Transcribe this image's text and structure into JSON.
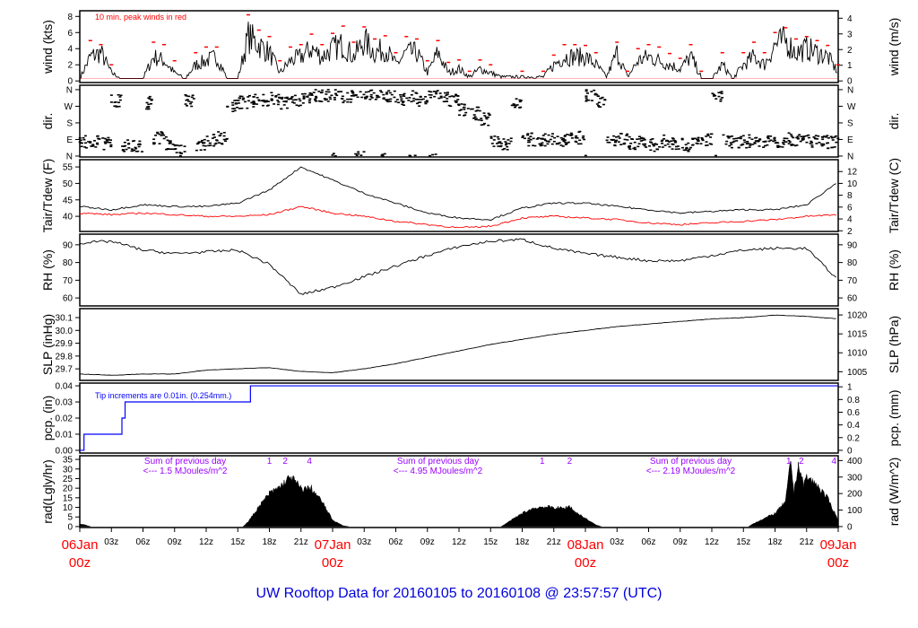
{
  "footer": "UW Rooftop Data for 20160105  to  20160108 @ 23:57:57  (UTC)",
  "colors": {
    "main": "#000000",
    "peak": "#ff0000",
    "dew": "#ff0000",
    "pcp": "#0000ff",
    "rad_note": "#9900ff",
    "date": "#ff0000",
    "footer": "#0000dd"
  },
  "chart_data": {
    "type": "line",
    "x_unit": "hours since 06Jan 00z",
    "x_range": [
      0,
      72
    ],
    "x_ticks": {
      "days": [
        {
          "h": 0,
          "label": "06Jan",
          "sub": "00z"
        },
        {
          "h": 24,
          "label": "07Jan",
          "sub": "00z"
        },
        {
          "h": 48,
          "label": "08Jan",
          "sub": "00z"
        },
        {
          "h": 72,
          "label": "09Jan",
          "sub": "00z"
        }
      ],
      "hours": [
        "03z",
        "06z",
        "09z",
        "12z",
        "15z",
        "18z",
        "21z"
      ]
    },
    "panels": {
      "wind": {
        "left_label": "wind (kts)",
        "right_label": "wind (m/s)",
        "ylim": [
          -0.2,
          8.7
        ],
        "left_ticks": [
          "0",
          "2",
          "4",
          "6",
          "8"
        ],
        "right_ticks": [
          "0",
          "1",
          "2",
          "3",
          "4"
        ],
        "note": "10 min. peak winds in red",
        "mean": [
          0.3,
          3,
          3.5,
          1,
          0.3,
          0.3,
          0.3,
          3,
          2.5,
          1,
          0.3,
          2,
          2.5,
          3,
          0.3,
          0.3,
          5.5,
          4.5,
          3.5,
          1,
          2.5,
          3,
          4,
          3,
          4,
          4.5,
          3,
          5,
          3.5,
          4,
          2,
          3.5,
          3.5,
          1,
          3.5,
          1,
          1.5,
          0.5,
          1.5,
          1,
          0.5,
          0.5,
          0.5,
          0.5,
          0.5,
          2,
          3,
          3,
          3,
          2,
          0.5,
          3.5,
          0.5,
          2.5,
          3,
          2.5,
          2,
          1.5,
          3,
          0.5,
          0.3,
          2,
          0.3,
          2,
          3,
          2,
          4.5,
          5,
          3.5,
          4,
          3.5,
          3,
          1
        ],
        "peak": [
          0.8,
          5,
          4.5,
          2,
          0.5,
          0.5,
          0.5,
          4.8,
          4.5,
          2.5,
          0.5,
          3.5,
          4.2,
          4.2,
          0.5,
          0.5,
          8.2,
          6.3,
          5.5,
          2.5,
          4.2,
          4.5,
          5.8,
          4.5,
          5.9,
          6.8,
          4.8,
          6.7,
          5.2,
          5.6,
          3.5,
          5.5,
          5.2,
          2.5,
          5,
          2.3,
          2.6,
          1.2,
          2.6,
          2,
          1,
          1,
          1.2,
          1,
          1.2,
          3.2,
          4.5,
          4.5,
          4.4,
          3.5,
          1,
          4.8,
          1.2,
          4,
          4.5,
          4.2,
          3.4,
          2.8,
          4.5,
          1.2,
          0.8,
          3.5,
          0.8,
          3.5,
          4.8,
          3.5,
          6,
          6.6,
          5.2,
          5.5,
          5,
          4.4,
          2
        ]
      },
      "dir": {
        "left_label": "dir.",
        "right_label": "dir.",
        "ylim": [
          -5,
          384
        ],
        "ticks": [
          "N",
          "E",
          "S",
          "W",
          "N"
        ],
        "values_deg": [
          75,
          80,
          70,
          300,
          60,
          50,
          290,
          100,
          70,
          30,
          300,
          60,
          90,
          100,
          270,
          290,
          300,
          300,
          310,
          290,
          300,
          310,
          330,
          330,
          340,
          320,
          350,
          340,
          340,
          320,
          310,
          330,
          300,
          340,
          320,
          300,
          250,
          230,
          200,
          80,
          70,
          280,
          90,
          80,
          90,
          80,
          90,
          100,
          330,
          300,
          80,
          90,
          70,
          80,
          60,
          80,
          70,
          60,
          70,
          90,
          330,
          80,
          70,
          80,
          80,
          90,
          80,
          90,
          85,
          80,
          80,
          75,
          90
        ]
      },
      "temp": {
        "left_label": "Tair/Tdew (F)",
        "right_label": "Tair/Tdew (C)",
        "ylim": [
          35.4,
          57.2
        ],
        "left_ticks": [
          "40",
          "45",
          "50",
          "55"
        ],
        "right_ticks": [
          "2",
          "4",
          "6",
          "8",
          "10",
          "12"
        ],
        "x_step_hours": 3,
        "tair": [
          43,
          42,
          43.5,
          43,
          43,
          44,
          48,
          55,
          51,
          47,
          44,
          41,
          39.5,
          39,
          42.5,
          44,
          44,
          43,
          42,
          41,
          41.5,
          42,
          42,
          43.5,
          50.5
        ],
        "tdew": [
          41,
          40.5,
          41,
          40.5,
          40,
          40,
          40.5,
          43,
          41,
          40,
          38.5,
          37.5,
          36.5,
          37,
          39.5,
          40,
          39.5,
          39,
          38,
          37.5,
          38,
          38.5,
          39,
          40,
          40.5
        ]
      },
      "rh": {
        "left_label": "RH (%)",
        "right_label": "RH (%)",
        "ylim": [
          55.5,
          96
        ],
        "ticks": [
          "60",
          "70",
          "80",
          "90"
        ],
        "x_step_hours": 3,
        "values": [
          91,
          92,
          87,
          85,
          86,
          87,
          79,
          62,
          66,
          72,
          78,
          84,
          89,
          92,
          93,
          88,
          85,
          83,
          81,
          81,
          84,
          87,
          88,
          88,
          70
        ]
      },
      "slp": {
        "left_label": "SLP (inHg)",
        "right_label": "SLP (hPa)",
        "ylim": [
          29.61,
          30.17
        ],
        "left_ticks": [
          "29.7",
          "29.8",
          "29.9",
          "30.0",
          "30.1"
        ],
        "right_ticks": [
          "1005",
          "1010",
          "1015",
          "1020"
        ],
        "x_step_hours": 3,
        "values": [
          29.66,
          29.65,
          29.66,
          29.66,
          29.69,
          29.7,
          29.71,
          29.68,
          29.67,
          29.7,
          29.74,
          29.79,
          29.84,
          29.89,
          29.93,
          29.97,
          30.0,
          30.03,
          30.05,
          30.07,
          30.09,
          30.1,
          30.12,
          30.11,
          30.09
        ]
      },
      "pcp": {
        "left_label": "pcp. (in)",
        "right_label": "pcp. (mm)",
        "ylim": [
          -0.0017,
          0.0417
        ],
        "left_ticks": [
          "0.00",
          "0.01",
          "0.02",
          "0.03",
          "0.04"
        ],
        "right_ticks": [
          "0",
          "0.2",
          "0.4",
          "0.6",
          "0.8",
          "1"
        ],
        "note": "Tip increments are 0.01in. (0.254mm.)",
        "steps": [
          [
            0,
            0
          ],
          [
            0.4,
            0.01
          ],
          [
            4.0,
            0.02
          ],
          [
            4.3,
            0.03
          ],
          [
            16.2,
            0.04
          ]
        ]
      },
      "rad": {
        "left_label": "rad(Lgly/hr)",
        "right_label": "rad (W/m^2)",
        "ylim": [
          -0.5,
          36.9
        ],
        "left_ticks": [
          "0",
          "5",
          "10",
          "15",
          "20",
          "25",
          "30",
          "35"
        ],
        "right_ticks": [
          "0",
          "100",
          "200",
          "300",
          "400"
        ],
        "notes": [
          {
            "h": 10,
            "line1": "Sum of previous day",
            "line2": "<--- 1.5 MJoules/m^2"
          },
          {
            "h": 34,
            "line1": "Sum of previous day",
            "line2": "<--- 4.95 MJoules/m^2"
          },
          {
            "h": 58,
            "line1": "Sum of previous day",
            "line2": "<--- 2.19 MJoules/m^2"
          }
        ],
        "markers": [
          {
            "h": 18,
            "t": "1"
          },
          {
            "h": 19.5,
            "t": "2"
          },
          {
            "h": 21.8,
            "t": "4"
          },
          {
            "h": 43.9,
            "t": "1"
          },
          {
            "h": 46.5,
            "t": "2"
          },
          {
            "h": 67.3,
            "t": "1"
          },
          {
            "h": 68.5,
            "t": "2"
          },
          {
            "h": 71.6,
            "t": "4"
          }
        ],
        "points_wm2": [
          [
            0,
            15
          ],
          [
            0.5,
            10
          ],
          [
            1,
            0
          ],
          [
            15.5,
            0
          ],
          [
            16,
            30
          ],
          [
            17,
            120
          ],
          [
            18,
            200
          ],
          [
            19,
            240
          ],
          [
            20,
            300
          ],
          [
            20.5,
            270
          ],
          [
            21,
            230
          ],
          [
            22,
            230
          ],
          [
            23,
            150
          ],
          [
            24,
            40
          ],
          [
            25,
            5
          ],
          [
            25.5,
            0
          ],
          [
            40,
            0
          ],
          [
            41,
            40
          ],
          [
            42,
            80
          ],
          [
            43,
            110
          ],
          [
            44,
            120
          ],
          [
            45,
            115
          ],
          [
            46,
            110
          ],
          [
            46.5,
            125
          ],
          [
            47,
            90
          ],
          [
            48,
            50
          ],
          [
            49,
            10
          ],
          [
            49.5,
            0
          ],
          [
            63.5,
            0
          ],
          [
            64,
            20
          ],
          [
            65,
            50
          ],
          [
            66,
            80
          ],
          [
            67,
            150
          ],
          [
            67.5,
            400
          ],
          [
            67.8,
            200
          ],
          [
            68.2,
            380
          ],
          [
            68.7,
            250
          ],
          [
            69,
            300
          ],
          [
            70,
            250
          ],
          [
            71,
            170
          ],
          [
            72,
            40
          ]
        ]
      }
    }
  }
}
